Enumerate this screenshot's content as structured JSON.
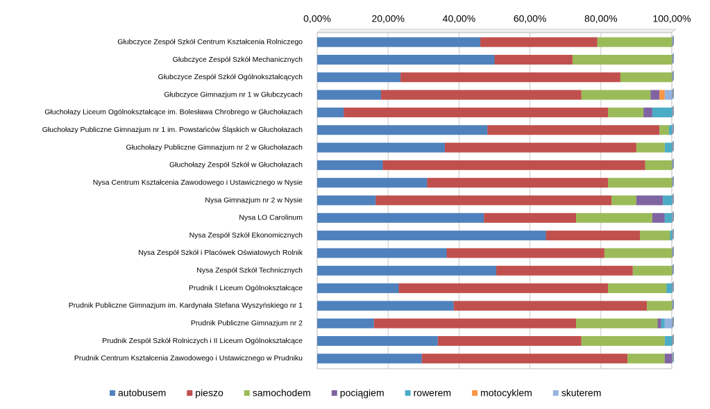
{
  "chart_data": {
    "type": "stacked-bar-horizontal",
    "categories": [
      "Głubczyce Zespół Szkół Centrum Kształcenia Rolniczego",
      "Głubczyce Zespół Szkół Mechanicznych",
      "Głubczyce Zespół Szkół Ogólnokształcących",
      "Głubczyce Gimnazjum nr 1 w Głubczycach",
      "Głuchołazy Liceum Ogólnokształcące im. Bolesława Chrobrego w Głuchołazach",
      "Głuchołazy Publiczne Gimnazjum nr 1 im. Powstańców Śląskich w Głuchołazach",
      "Głuchołazy Publiczne Gimnazjum nr 2 w Głuchołazach",
      "Głuchołazy Zespół Szkół w Głuchołazach",
      "Nysa Centrum Kształcenia Zawodowego i Ustawicznego w Nysie",
      "Nysa Gimnazjum nr 2 w Nysie",
      "Nysa LO Carolinum",
      "Nysa Zespół Szkół Ekonomicznych",
      "Nysa Zespół Szkół i Placówek Oświatowych Rolnik",
      "Nysa Zespół Szkół Technicznych",
      "Prudnik I Liceum Ogólnokształcące",
      "Prudnik Publiczne Gimnazjum im. Kardynała Stefana Wyszyńskiego nr 1",
      "Prudnik Publiczne Gimnazjum nr 2",
      "Prudnik Zespół Szkół Rolniczych i II Liceum Ogólnokształcące",
      "Prudnik Centrum Kształcenia Zawodowego i Ustawicznego w Prudniku"
    ],
    "series": [
      {
        "name": "autobusem",
        "color": "#4f81bd",
        "values": [
          46,
          50,
          23.5,
          18,
          7.5,
          48,
          36,
          18.5,
          31,
          16.5,
          47,
          64.5,
          36.5,
          50.5,
          23,
          38.5,
          16,
          34,
          29.5
        ]
      },
      {
        "name": "pieszo",
        "color": "#c0504d",
        "values": [
          33,
          22,
          62,
          56.5,
          74.5,
          48.5,
          54,
          74,
          51,
          66.5,
          26,
          26.5,
          44.5,
          38.5,
          59,
          54.5,
          57,
          40.5,
          58
        ]
      },
      {
        "name": "samochodem",
        "color": "#9bbb59",
        "values": [
          21,
          28,
          14.5,
          19.5,
          10,
          2.7,
          8,
          7.5,
          18,
          7,
          21.5,
          8.5,
          19,
          11,
          16.5,
          7,
          23,
          23.5,
          10.5
        ]
      },
      {
        "name": "pociągiem",
        "color": "#8064a2",
        "values": [
          0,
          0,
          0,
          2.5,
          2.5,
          0,
          0,
          0,
          0,
          7.5,
          3.5,
          0,
          0,
          0,
          0,
          0,
          1,
          0,
          2
        ]
      },
      {
        "name": "rowerem",
        "color": "#4bacc6",
        "values": [
          0,
          0,
          0,
          0,
          5.5,
          0.8,
          2,
          0,
          0,
          2.5,
          2,
          0.5,
          0,
          0,
          1.5,
          0,
          1,
          2,
          0
        ]
      },
      {
        "name": "motocyklem",
        "color": "#f79646",
        "values": [
          0,
          0,
          0,
          1.5,
          0,
          0,
          0,
          0,
          0,
          0,
          0,
          0,
          0,
          0,
          0,
          0,
          0,
          0,
          0
        ]
      },
      {
        "name": "skuterem",
        "color": "#95b3e0",
        "values": [
          0,
          0,
          0,
          2,
          0,
          0,
          0,
          0,
          0,
          0,
          0,
          0,
          0,
          0,
          0,
          0,
          2,
          0,
          0
        ]
      }
    ],
    "xlim": [
      0,
      100
    ],
    "xticks": [
      {
        "value": 0,
        "label": "0,00%"
      },
      {
        "value": 20,
        "label": "20,00%"
      },
      {
        "value": 40,
        "label": "40,00%"
      },
      {
        "value": 60,
        "label": "60,00%"
      },
      {
        "value": 80,
        "label": "80,00%"
      },
      {
        "value": 100,
        "label": "100,00%"
      }
    ],
    "grid": true,
    "legend": "bottom"
  }
}
